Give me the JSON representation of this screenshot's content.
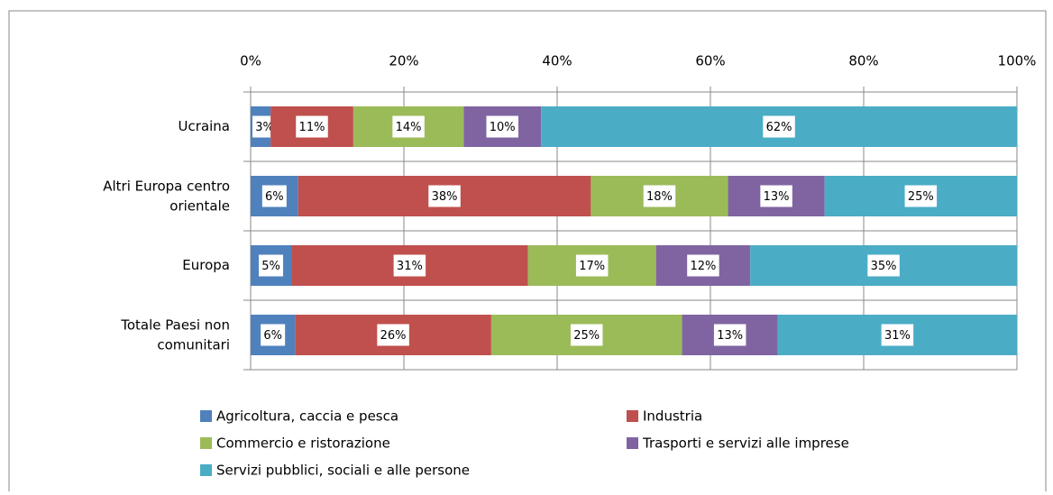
{
  "chart_data": {
    "type": "stacked_barh",
    "categories": [
      "Ucraina",
      "Altri Europa centro orientale",
      "Europa",
      "Totale Paesi non comunitari"
    ],
    "series": [
      {
        "name": "Agricoltura, caccia e pesca",
        "color": "#4f81bd",
        "values": [
          2.6,
          6.2,
          5.3,
          5.8
        ],
        "value_labels": [
          "3%",
          "6%",
          "5%",
          "6%"
        ]
      },
      {
        "name": "Industria",
        "color": "#c0504d",
        "values": [
          10.8,
          38.2,
          30.9,
          25.6
        ],
        "value_labels": [
          "11%",
          "38%",
          "31%",
          "26%"
        ]
      },
      {
        "name": "Commercio e ristorazione",
        "color": "#9bbb59",
        "values": [
          14.4,
          17.9,
          16.7,
          24.9
        ],
        "value_labels": [
          "14%",
          "18%",
          "17%",
          "25%"
        ]
      },
      {
        "name": "Trasporti e servizi alle imprese",
        "color": "#8064a2",
        "values": [
          10.1,
          12.6,
          12.3,
          12.5
        ],
        "value_labels": [
          "10%",
          "13%",
          "12%",
          "13%"
        ]
      },
      {
        "name": "Servizi pubblici, sociali e alle persone",
        "color": "#4bacc6",
        "values": [
          62.1,
          25.1,
          34.8,
          31.2
        ],
        "value_labels": [
          "62%",
          "25%",
          "35%",
          "31%"
        ]
      }
    ],
    "xlim": [
      0,
      100
    ],
    "xticks": [
      {
        "value": 0,
        "label": "0%"
      },
      {
        "value": 20,
        "label": "20%"
      },
      {
        "value": 40,
        "label": "40%"
      },
      {
        "value": 60,
        "label": "60%"
      },
      {
        "value": 80,
        "label": "80%"
      },
      {
        "value": 100,
        "label": "100%"
      }
    ],
    "grid": true,
    "legend": "bottom"
  }
}
